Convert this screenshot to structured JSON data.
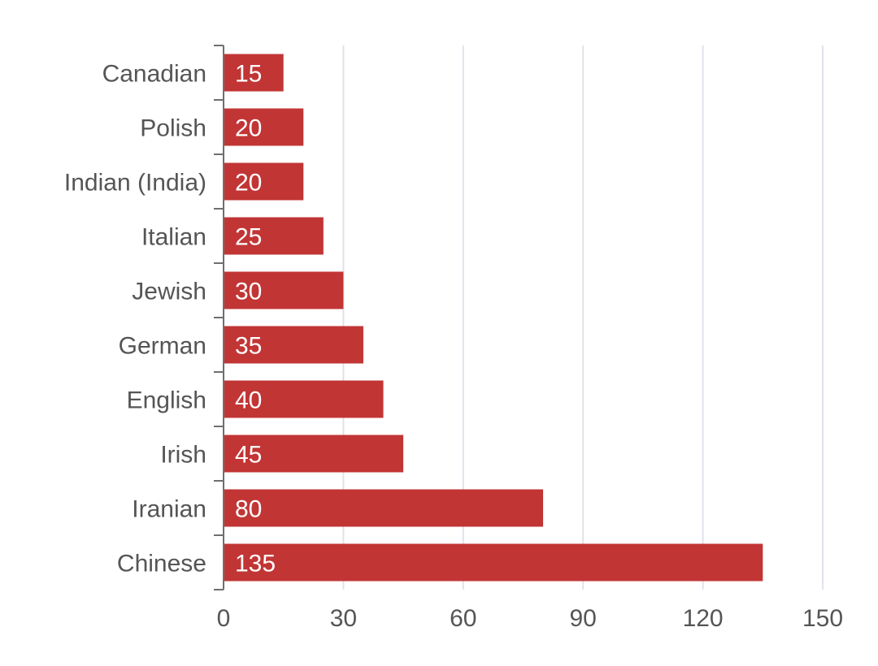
{
  "chart_data": {
    "type": "bar",
    "orientation": "horizontal",
    "title": "",
    "xlabel": "",
    "ylabel": "",
    "categories": [
      "Canadian",
      "Polish",
      "Indian (India)",
      "Italian",
      "Jewish",
      "German",
      "English",
      "Irish",
      "Iranian",
      "Chinese"
    ],
    "values": [
      15,
      20,
      20,
      25,
      30,
      35,
      40,
      45,
      80,
      135
    ],
    "data_labels": [
      "15",
      "20",
      "20",
      "25",
      "30",
      "35",
      "40",
      "45",
      "80",
      "135"
    ],
    "xlim": [
      0,
      150
    ],
    "x_ticks": [
      0,
      30,
      60,
      90,
      120,
      150
    ],
    "x_tick_labels": [
      "0",
      "30",
      "60",
      "90",
      "120",
      "150"
    ],
    "grid": "vertical",
    "legend": "none",
    "colors": {
      "bar": "#c23535",
      "data_label": "#ffffff",
      "grid": "#dfe3ea",
      "axis": "#6f6f6f",
      "label": "#555555"
    }
  }
}
